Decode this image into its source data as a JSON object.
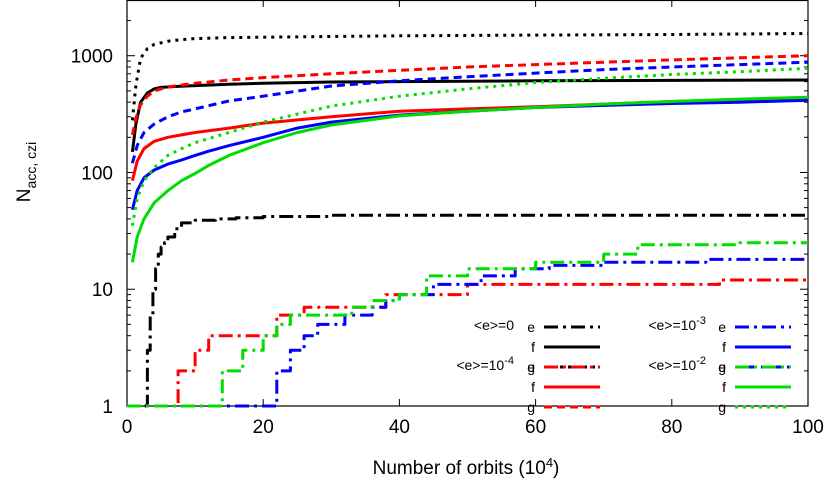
{
  "chart_data": {
    "type": "line",
    "xlabel": "Number of orbits (10",
    "xlabel_sup": "4",
    "xlabel_end": ")",
    "ylabel": "N",
    "ylabel_sub": "acc, czi",
    "xlim": [
      0,
      100
    ],
    "ylim": [
      1,
      3000
    ],
    "yscale": "log",
    "x_ticks": [
      0,
      20,
      40,
      60,
      80,
      100
    ],
    "y_ticks": [
      1,
      10,
      100,
      1000
    ],
    "x_tick_labels": [
      "0",
      "20",
      "40",
      "60",
      "80",
      "100"
    ],
    "y_tick_labels": [
      "1",
      "10",
      "100",
      "1000"
    ],
    "legend_groups": [
      {
        "prefix": "<e>=0",
        "sup": ""
      },
      {
        "prefix": "<e>=10",
        "sup": "-4"
      },
      {
        "prefix": "<e>=10",
        "sup": "-3"
      },
      {
        "prefix": "<e>=10",
        "sup": "-2"
      }
    ],
    "series": [
      {
        "group": 0,
        "label": "e",
        "color": "#000000",
        "dash": "dashdot",
        "step": true,
        "x": [
          2.6,
          3.0,
          3.4,
          3.8,
          4.2,
          4.6,
          5.0,
          5.5,
          6.0,
          7.0,
          8.0,
          10,
          13,
          16,
          20,
          25,
          30,
          40,
          60,
          80,
          100
        ],
        "y": [
          1,
          3,
          6,
          10,
          15,
          20,
          23,
          25,
          28,
          33,
          37,
          39,
          40,
          41,
          42,
          42,
          43,
          43,
          43,
          43,
          43
        ]
      },
      {
        "group": 0,
        "label": "f",
        "color": "#000000",
        "dash": "solid",
        "x": [
          0.8,
          1.3,
          2.0,
          3.0,
          4.0,
          5.0,
          7.0,
          10,
          15,
          20,
          30,
          40,
          60,
          80,
          100
        ],
        "y": [
          150,
          260,
          400,
          480,
          520,
          535,
          545,
          555,
          570,
          580,
          595,
          600,
          610,
          615,
          620
        ]
      },
      {
        "group": 0,
        "label": "g",
        "color": "#000000",
        "dash": "dot",
        "x": [
          0.8,
          1.3,
          2.0,
          3.0,
          4.0,
          6.0,
          8.0,
          10,
          15,
          20,
          30,
          40,
          60,
          80,
          100
        ],
        "y": [
          280,
          560,
          950,
          1150,
          1250,
          1330,
          1370,
          1400,
          1430,
          1440,
          1460,
          1480,
          1500,
          1520,
          1550
        ]
      },
      {
        "group": 1,
        "label": "e",
        "color": "#ff0000",
        "dash": "dashdot",
        "step": true,
        "x": [
          0,
          7.5,
          10,
          12,
          15,
          22,
          26,
          35,
          38,
          50,
          87,
          100
        ],
        "y": [
          1,
          2,
          3,
          4,
          4,
          6,
          7,
          7,
          9,
          11,
          12,
          12
        ]
      },
      {
        "group": 1,
        "label": "f",
        "color": "#ff0000",
        "dash": "solid",
        "x": [
          0.8,
          1.5,
          2.5,
          4.0,
          6.0,
          8.0,
          10,
          15,
          20,
          30,
          40,
          50,
          60,
          70,
          80,
          90,
          100
        ],
        "y": [
          85,
          125,
          160,
          185,
          200,
          210,
          220,
          240,
          265,
          300,
          335,
          350,
          365,
          385,
          405,
          420,
          435
        ]
      },
      {
        "group": 1,
        "label": "g",
        "color": "#ff0000",
        "dash": "dash",
        "x": [
          0.8,
          1.3,
          2.0,
          3.0,
          4.0,
          5.0,
          6.0,
          8.0,
          10,
          15,
          20,
          30,
          40,
          50,
          60,
          70,
          80,
          90,
          100
        ],
        "y": [
          210,
          290,
          380,
          450,
          500,
          520,
          540,
          560,
          580,
          620,
          650,
          700,
          750,
          800,
          840,
          880,
          920,
          960,
          1000
        ]
      },
      {
        "group": 2,
        "label": "e",
        "color": "#0000ff",
        "dash": "dashdot",
        "step": true,
        "x": [
          0,
          22,
          24,
          26,
          28,
          32,
          36,
          38,
          40,
          45,
          52,
          57,
          62,
          70,
          85,
          100
        ],
        "y": [
          1,
          2,
          3,
          4,
          5,
          6,
          7,
          8,
          9,
          11,
          13,
          15,
          16,
          17,
          18,
          18
        ]
      },
      {
        "group": 2,
        "label": "f",
        "color": "#0000ff",
        "dash": "solid",
        "x": [
          0.8,
          1.5,
          2.5,
          4.0,
          6.0,
          8.0,
          10,
          12,
          15,
          20,
          25,
          30,
          40,
          50,
          60,
          70,
          80,
          90,
          100
        ],
        "y": [
          48,
          70,
          90,
          105,
          118,
          128,
          140,
          152,
          170,
          200,
          240,
          270,
          310,
          335,
          360,
          375,
          390,
          400,
          415
        ]
      },
      {
        "group": 2,
        "label": "g",
        "color": "#0000ff",
        "dash": "dash",
        "x": [
          0.8,
          1.5,
          2.5,
          4.0,
          6.0,
          8.0,
          10,
          15,
          20,
          30,
          40,
          50,
          60,
          70,
          80,
          90,
          100
        ],
        "y": [
          120,
          170,
          220,
          260,
          300,
          330,
          350,
          410,
          450,
          550,
          610,
          660,
          710,
          760,
          800,
          840,
          880
        ]
      },
      {
        "group": 3,
        "label": "e",
        "color": "#00dd00",
        "dash": "dashdot",
        "step": true,
        "x": [
          0,
          14,
          17,
          20,
          22,
          24,
          33,
          36,
          40,
          44,
          50,
          60,
          70,
          75,
          90,
          100
        ],
        "y": [
          1,
          2,
          3,
          4,
          5,
          6,
          7,
          8,
          9,
          13,
          15,
          17,
          20,
          24,
          25,
          25
        ]
      },
      {
        "group": 3,
        "label": "f",
        "color": "#00dd00",
        "dash": "solid",
        "x": [
          0.8,
          1.5,
          2.5,
          4.0,
          6.0,
          8.0,
          10,
          12,
          15,
          20,
          25,
          30,
          40,
          50,
          60,
          70,
          80,
          90,
          100
        ],
        "y": [
          17,
          28,
          40,
          55,
          70,
          85,
          98,
          115,
          140,
          180,
          220,
          255,
          305,
          335,
          360,
          385,
          405,
          425,
          440
        ]
      },
      {
        "group": 3,
        "label": "g",
        "color": "#00dd00",
        "dash": "dot",
        "x": [
          0.8,
          1.5,
          2.5,
          4.0,
          6.0,
          8.0,
          10,
          15,
          20,
          30,
          40,
          50,
          60,
          70,
          80,
          90,
          100
        ],
        "y": [
          35,
          60,
          85,
          110,
          140,
          160,
          180,
          220,
          270,
          370,
          450,
          520,
          590,
          640,
          690,
          730,
          780
        ]
      }
    ]
  }
}
